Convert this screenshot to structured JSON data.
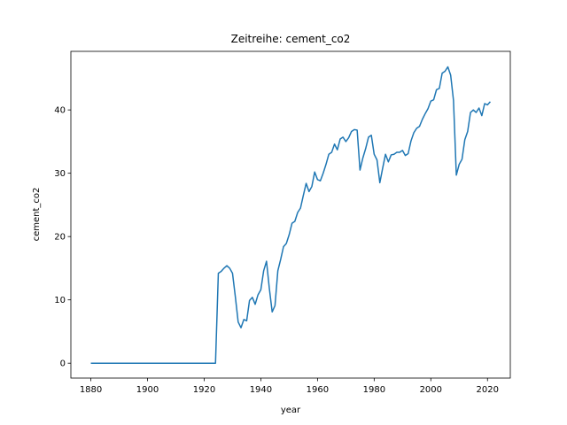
{
  "chart_data": {
    "type": "line",
    "title": "Zeitreihe: cement_co2",
    "x_label": "year",
    "y_label": "cement_co2",
    "x": [
      1880,
      1924,
      1925,
      1926,
      1927,
      1928,
      1929,
      1930,
      1931,
      1932,
      1933,
      1934,
      1935,
      1936,
      1937,
      1938,
      1939,
      1940,
      1941,
      1942,
      1943,
      1944,
      1945,
      1946,
      1947,
      1948,
      1949,
      1950,
      1951,
      1952,
      1953,
      1954,
      1955,
      1956,
      1957,
      1958,
      1959,
      1960,
      1961,
      1962,
      1963,
      1964,
      1965,
      1966,
      1967,
      1968,
      1969,
      1970,
      1971,
      1972,
      1973,
      1974,
      1975,
      1976,
      1977,
      1978,
      1979,
      1980,
      1981,
      1982,
      1983,
      1984,
      1985,
      1986,
      1987,
      1988,
      1989,
      1990,
      1991,
      1992,
      1993,
      1994,
      1995,
      1996,
      1997,
      1998,
      1999,
      2000,
      2001,
      2002,
      2003,
      2004,
      2005,
      2006,
      2007,
      2008,
      2009,
      2010,
      2011,
      2012,
      2013,
      2014,
      2015,
      2016,
      2017,
      2018,
      2019,
      2020,
      2021
    ],
    "series": [
      {
        "name": "cement_co2",
        "color": "#1f77b4",
        "values": [
          0,
          0,
          14.2,
          14.5,
          15.0,
          15.4,
          15.0,
          14.2,
          10.5,
          6.5,
          5.6,
          6.9,
          6.7,
          9.9,
          10.4,
          9.3,
          10.8,
          11.6,
          14.6,
          16.1,
          11.8,
          8.1,
          9.1,
          14.6,
          16.4,
          18.4,
          18.9,
          20.3,
          22.1,
          22.4,
          23.8,
          24.5,
          26.5,
          28.4,
          27.1,
          27.9,
          30.2,
          29.0,
          28.8,
          30.0,
          31.4,
          33.0,
          33.3,
          34.6,
          33.7,
          35.4,
          35.7,
          35.0,
          35.6,
          36.6,
          36.9,
          36.8,
          30.5,
          32.4,
          33.9,
          35.7,
          36.0,
          33.0,
          32.1,
          28.5,
          30.8,
          33.0,
          31.8,
          32.9,
          33.0,
          33.3,
          33.3,
          33.6,
          32.8,
          33.1,
          35.1,
          36.4,
          37.1,
          37.4,
          38.5,
          39.4,
          40.2,
          41.4,
          41.6,
          43.2,
          43.4,
          45.8,
          46.1,
          46.8,
          45.5,
          41.5,
          29.7,
          31.4,
          32.2,
          35.3,
          36.6,
          39.6,
          40.0,
          39.6,
          40.3,
          39.1,
          41.0,
          40.8,
          41.3
        ]
      }
    ],
    "xlim": [
      1872.95,
      2028.05
    ],
    "xticks": [
      1880,
      1900,
      1920,
      1940,
      1960,
      1980,
      2000,
      2020
    ],
    "ylim": [
      -2.35,
      49.25
    ],
    "yticks": [
      0,
      10,
      20,
      30,
      40
    ],
    "grid": false
  }
}
